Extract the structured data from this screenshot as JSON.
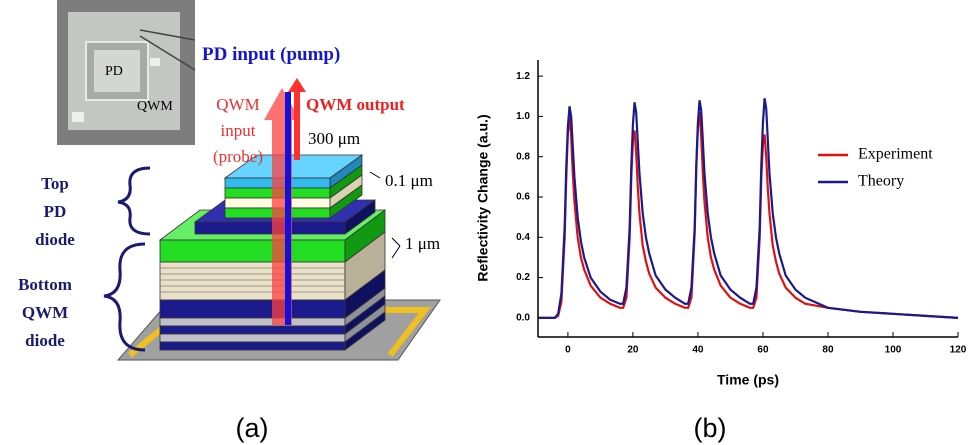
{
  "figure": {
    "photo": {
      "pd": "PD",
      "qwm": "QWM"
    },
    "pd_input": "PD input (pump)",
    "qwm_output": "QWM output",
    "qwm_input": [
      "QWM",
      "input",
      "(probe)"
    ],
    "dims": [
      "300 μm",
      "0.1 μm",
      "1 μm"
    ],
    "top_label": [
      "Top",
      "PD",
      "diode"
    ],
    "bottom_label": [
      "Bottom",
      "QWM",
      "diode"
    ],
    "panel_a": "(a)",
    "panel_b": "(b)"
  },
  "chart_data": {
    "type": "line",
    "xlabel": "Time (ps)",
    "ylabel": "Reflectivity Change (a.u.)",
    "xlim": [
      -9.2,
      120
    ],
    "ylim": [
      -0.095,
      1.28
    ],
    "xticks": [
      0,
      20,
      40,
      60,
      80,
      100,
      120
    ],
    "yticks": [
      {
        "value": 0,
        "label": "0.0"
      },
      {
        "value": 0.2,
        "label": "0.2"
      },
      {
        "value": 0.4,
        "label": "0.4"
      },
      {
        "value": 0.6,
        "label": "0.6"
      },
      {
        "value": 0.8,
        "label": "0.8"
      },
      {
        "value": 1.0,
        "label": "1.0"
      },
      {
        "value": 1.2,
        "label": "1.2"
      }
    ],
    "legend": "upper right",
    "x": [
      -9,
      -4,
      -3,
      -2,
      -1,
      -0.5,
      0,
      0.5,
      1,
      1.5,
      2,
      3,
      4,
      5,
      7,
      10,
      13,
      16,
      17,
      18,
      19,
      19.5,
      20,
      20.5,
      21,
      21.5,
      22,
      23,
      24,
      25,
      27,
      30,
      33,
      36,
      37,
      38,
      39,
      39.5,
      40,
      40.5,
      41,
      41.5,
      42,
      43,
      44,
      45,
      47,
      50,
      53,
      56,
      57,
      58,
      59,
      59.5,
      60,
      60.5,
      61,
      61.5,
      62,
      63,
      64,
      65,
      67,
      70,
      73,
      80,
      90,
      100,
      110,
      120
    ],
    "series": [
      {
        "name": "Experiment",
        "color": "#e01010",
        "values": [
          0,
          0,
          0.01,
          0.08,
          0.4,
          0.7,
          0.92,
          1.0,
          0.9,
          0.72,
          0.58,
          0.4,
          0.3,
          0.24,
          0.16,
          0.1,
          0.07,
          0.05,
          0.05,
          0.1,
          0.4,
          0.7,
          0.88,
          0.93,
          0.82,
          0.65,
          0.52,
          0.36,
          0.28,
          0.22,
          0.15,
          0.1,
          0.07,
          0.05,
          0.05,
          0.1,
          0.42,
          0.75,
          0.95,
          1.02,
          0.9,
          0.72,
          0.58,
          0.4,
          0.3,
          0.24,
          0.16,
          0.1,
          0.07,
          0.05,
          0.05,
          0.1,
          0.4,
          0.7,
          0.86,
          0.91,
          0.8,
          0.64,
          0.52,
          0.36,
          0.28,
          0.22,
          0.15,
          0.1,
          0.07,
          0.05,
          0.03,
          0.02,
          0.01,
          0.0
        ]
      },
      {
        "name": "Theory",
        "color": "#1a1a8c",
        "values": [
          0,
          0,
          0.02,
          0.12,
          0.45,
          0.75,
          0.95,
          1.05,
          1.0,
          0.85,
          0.7,
          0.5,
          0.38,
          0.3,
          0.2,
          0.13,
          0.09,
          0.07,
          0.07,
          0.15,
          0.45,
          0.75,
          0.96,
          1.07,
          1.02,
          0.87,
          0.72,
          0.52,
          0.4,
          0.32,
          0.21,
          0.14,
          0.1,
          0.07,
          0.07,
          0.15,
          0.45,
          0.76,
          0.97,
          1.08,
          1.03,
          0.88,
          0.72,
          0.52,
          0.4,
          0.32,
          0.21,
          0.14,
          0.1,
          0.07,
          0.07,
          0.15,
          0.45,
          0.76,
          0.97,
          1.09,
          1.04,
          0.88,
          0.72,
          0.52,
          0.4,
          0.32,
          0.21,
          0.14,
          0.1,
          0.05,
          0.03,
          0.02,
          0.01,
          0.0
        ]
      }
    ]
  }
}
